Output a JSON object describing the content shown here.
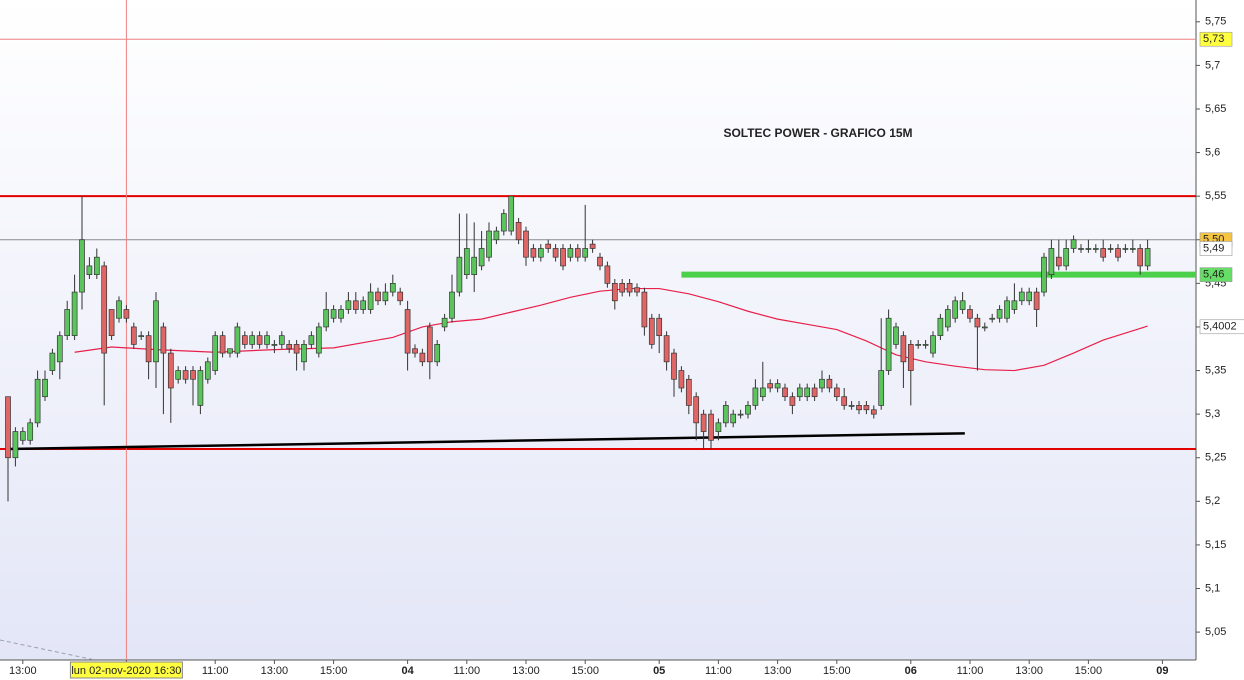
{
  "chart_data": {
    "type": "candlestick",
    "title": "SOLTEC POWER - GRAFICO 15M",
    "categories": [
      null,
      null,
      "13:00",
      null,
      null,
      null,
      null,
      null,
      null,
      null,
      null,
      null,
      null,
      null,
      null,
      null,
      "lun 02-nov-2020 16:30",
      null,
      null,
      null,
      null,
      null,
      null,
      null,
      null,
      null,
      null,
      null,
      "11:00",
      null,
      null,
      null,
      null,
      null,
      null,
      null,
      "13:00",
      null,
      null,
      null,
      null,
      null,
      null,
      null,
      "15:00",
      null,
      null,
      null,
      null,
      null,
      null,
      null,
      null,
      null,
      "04",
      null,
      null,
      null,
      null,
      null,
      null,
      null,
      "11:00",
      null,
      null,
      null,
      null,
      null,
      null,
      null,
      "13:00",
      null,
      null,
      null,
      null,
      null,
      null,
      null,
      "15:00",
      null,
      null,
      null,
      null,
      null,
      null,
      null,
      null,
      null,
      "05",
      null,
      null,
      null,
      null,
      null,
      null,
      null,
      "11:00",
      null,
      null,
      null,
      null,
      null,
      null,
      null,
      "13:00",
      null,
      null,
      null,
      null,
      null,
      null,
      null,
      "15:00",
      null,
      null,
      null,
      null,
      null,
      null,
      null,
      null,
      null,
      "06",
      null,
      null,
      null,
      null,
      null,
      null,
      null,
      "11:00",
      null,
      null,
      null,
      null,
      null,
      null,
      null,
      "13:00",
      null,
      null,
      null,
      null,
      null,
      null,
      null,
      "15:00",
      null,
      null,
      null,
      null,
      null,
      null,
      null,
      null,
      null,
      "09"
    ],
    "ohlc": [
      [
        5.32,
        5.32,
        5.2,
        5.25
      ],
      [
        5.25,
        5.285,
        5.24,
        5.28
      ],
      [
        5.27,
        5.285,
        5.265,
        5.28
      ],
      [
        5.27,
        5.295,
        5.265,
        5.29
      ],
      [
        5.29,
        5.35,
        5.285,
        5.34
      ],
      [
        5.32,
        5.35,
        5.315,
        5.34
      ],
      [
        5.35,
        5.375,
        5.345,
        5.37
      ],
      [
        5.36,
        5.395,
        5.34,
        5.39
      ],
      [
        5.39,
        5.43,
        5.385,
        5.42
      ],
      [
        5.39,
        5.46,
        5.385,
        5.44
      ],
      [
        5.44,
        5.55,
        5.42,
        5.5
      ],
      [
        5.46,
        5.48,
        5.455,
        5.47
      ],
      [
        5.46,
        5.49,
        5.455,
        5.48
      ],
      [
        5.47,
        5.475,
        5.31,
        5.37
      ],
      [
        5.42,
        5.42,
        5.385,
        5.39
      ],
      [
        5.41,
        5.435,
        5.405,
        5.43
      ],
      [
        5.42,
        5.425,
        5.405,
        5.41
      ],
      [
        5.4,
        5.405,
        5.375,
        5.38
      ],
      [
        5.39,
        5.395,
        5.385,
        5.39
      ],
      [
        5.39,
        5.395,
        5.34,
        5.36
      ],
      [
        5.36,
        5.44,
        5.33,
        5.43
      ],
      [
        5.4,
        5.405,
        5.3,
        5.37
      ],
      [
        5.37,
        5.375,
        5.29,
        5.33
      ],
      [
        5.34,
        5.355,
        5.335,
        5.35
      ],
      [
        5.35,
        5.355,
        5.335,
        5.34
      ],
      [
        5.35,
        5.355,
        5.31,
        5.34
      ],
      [
        5.31,
        5.355,
        5.3,
        5.35
      ],
      [
        5.34,
        5.365,
        5.335,
        5.36
      ],
      [
        5.35,
        5.395,
        5.345,
        5.39
      ],
      [
        5.39,
        5.395,
        5.365,
        5.37
      ],
      [
        5.37,
        5.375,
        5.365,
        5.375
      ],
      [
        5.37,
        5.405,
        5.365,
        5.4
      ],
      [
        5.39,
        5.395,
        5.375,
        5.38
      ],
      [
        5.38,
        5.395,
        5.375,
        5.39
      ],
      [
        5.39,
        5.395,
        5.375,
        5.38
      ],
      [
        5.38,
        5.395,
        5.375,
        5.39
      ],
      [
        5.38,
        5.385,
        5.37,
        5.38
      ],
      [
        5.38,
        5.395,
        5.375,
        5.39
      ],
      [
        5.38,
        5.385,
        5.37,
        5.375
      ],
      [
        5.38,
        5.385,
        5.35,
        5.37
      ],
      [
        5.36,
        5.385,
        5.35,
        5.38
      ],
      [
        5.38,
        5.395,
        5.375,
        5.39
      ],
      [
        5.37,
        5.405,
        5.365,
        5.4
      ],
      [
        5.4,
        5.44,
        5.395,
        5.42
      ],
      [
        5.41,
        5.425,
        5.405,
        5.42
      ],
      [
        5.41,
        5.425,
        5.405,
        5.42
      ],
      [
        5.42,
        5.44,
        5.415,
        5.43
      ],
      [
        5.43,
        5.44,
        5.415,
        5.42
      ],
      [
        5.42,
        5.435,
        5.415,
        5.43
      ],
      [
        5.42,
        5.45,
        5.415,
        5.44
      ],
      [
        5.44,
        5.445,
        5.425,
        5.43
      ],
      [
        5.43,
        5.45,
        5.425,
        5.44
      ],
      [
        5.44,
        5.46,
        5.435,
        5.45
      ],
      [
        5.44,
        5.445,
        5.425,
        5.43
      ],
      [
        5.42,
        5.43,
        5.35,
        5.37
      ],
      [
        5.375,
        5.38,
        5.365,
        5.37
      ],
      [
        5.37,
        5.375,
        5.355,
        5.36
      ],
      [
        5.4,
        5.405,
        5.34,
        5.36
      ],
      [
        5.36,
        5.385,
        5.355,
        5.38
      ],
      [
        5.4,
        5.415,
        5.395,
        5.41
      ],
      [
        5.41,
        5.46,
        5.405,
        5.44
      ],
      [
        5.44,
        5.53,
        5.435,
        5.48
      ],
      [
        5.46,
        5.53,
        5.455,
        5.49
      ],
      [
        5.46,
        5.52,
        5.44,
        5.48
      ],
      [
        5.47,
        5.51,
        5.465,
        5.49
      ],
      [
        5.48,
        5.52,
        5.475,
        5.51
      ],
      [
        5.5,
        5.515,
        5.495,
        5.51
      ],
      [
        5.51,
        5.535,
        5.505,
        5.53
      ],
      [
        5.51,
        5.55,
        5.505,
        5.55
      ],
      [
        5.52,
        5.525,
        5.495,
        5.5
      ],
      [
        5.51,
        5.515,
        5.47,
        5.48
      ],
      [
        5.49,
        5.495,
        5.475,
        5.48
      ],
      [
        5.48,
        5.495,
        5.475,
        5.49
      ],
      [
        5.495,
        5.5,
        5.485,
        5.49
      ],
      [
        5.49,
        5.495,
        5.475,
        5.48
      ],
      [
        5.49,
        5.495,
        5.465,
        5.47
      ],
      [
        5.48,
        5.495,
        5.475,
        5.49
      ],
      [
        5.49,
        5.495,
        5.475,
        5.48
      ],
      [
        5.48,
        5.54,
        5.475,
        5.49
      ],
      [
        5.495,
        5.5,
        5.485,
        5.49
      ],
      [
        5.48,
        5.485,
        5.465,
        5.47
      ],
      [
        5.47,
        5.475,
        5.445,
        5.45
      ],
      [
        5.45,
        5.455,
        5.42,
        5.43
      ],
      [
        5.45,
        5.455,
        5.435,
        5.44
      ],
      [
        5.45,
        5.455,
        5.435,
        5.44
      ],
      [
        5.445,
        5.45,
        5.435,
        5.44
      ],
      [
        5.44,
        5.445,
        5.39,
        5.4
      ],
      [
        5.41,
        5.415,
        5.375,
        5.38
      ],
      [
        5.41,
        5.415,
        5.37,
        5.39
      ],
      [
        5.39,
        5.395,
        5.35,
        5.36
      ],
      [
        5.37,
        5.375,
        5.32,
        5.34
      ],
      [
        5.35,
        5.355,
        5.325,
        5.33
      ],
      [
        5.34,
        5.345,
        5.3,
        5.31
      ],
      [
        5.32,
        5.325,
        5.27,
        5.29
      ],
      [
        5.3,
        5.305,
        5.26,
        5.28
      ],
      [
        5.3,
        5.305,
        5.26,
        5.27
      ],
      [
        5.28,
        5.295,
        5.27,
        5.29
      ],
      [
        5.29,
        5.315,
        5.285,
        5.31
      ],
      [
        5.29,
        5.305,
        5.285,
        5.3
      ],
      [
        5.3,
        5.305,
        5.295,
        5.3
      ],
      [
        5.3,
        5.315,
        5.295,
        5.31
      ],
      [
        5.31,
        5.34,
        5.305,
        5.33
      ],
      [
        5.32,
        5.36,
        5.315,
        5.33
      ],
      [
        5.335,
        5.34,
        5.325,
        5.33
      ],
      [
        5.33,
        5.34,
        5.325,
        5.335
      ],
      [
        5.33,
        5.335,
        5.315,
        5.32
      ],
      [
        5.32,
        5.325,
        5.3,
        5.31
      ],
      [
        5.32,
        5.335,
        5.315,
        5.33
      ],
      [
        5.32,
        5.335,
        5.315,
        5.33
      ],
      [
        5.33,
        5.335,
        5.315,
        5.32
      ],
      [
        5.33,
        5.35,
        5.325,
        5.34
      ],
      [
        5.34,
        5.345,
        5.325,
        5.33
      ],
      [
        5.33,
        5.335,
        5.315,
        5.32
      ],
      [
        5.32,
        5.33,
        5.305,
        5.31
      ],
      [
        5.31,
        5.315,
        5.305,
        5.31
      ],
      [
        5.31,
        5.315,
        5.3,
        5.305
      ],
      [
        5.31,
        5.315,
        5.3,
        5.305
      ],
      [
        5.305,
        5.31,
        5.295,
        5.3
      ],
      [
        5.31,
        5.41,
        5.305,
        5.35
      ],
      [
        5.35,
        5.42,
        5.345,
        5.41
      ],
      [
        5.38,
        5.405,
        5.375,
        5.4
      ],
      [
        5.39,
        5.395,
        5.33,
        5.36
      ],
      [
        5.38,
        5.385,
        5.31,
        5.35
      ],
      [
        5.38,
        5.385,
        5.375,
        5.38
      ],
      [
        5.38,
        5.385,
        5.375,
        5.38
      ],
      [
        5.37,
        5.395,
        5.365,
        5.39
      ],
      [
        5.39,
        5.415,
        5.385,
        5.41
      ],
      [
        5.4,
        5.425,
        5.395,
        5.42
      ],
      [
        5.41,
        5.435,
        5.405,
        5.43
      ],
      [
        5.42,
        5.44,
        5.415,
        5.43
      ],
      [
        5.42,
        5.425,
        5.405,
        5.41
      ],
      [
        5.41,
        5.415,
        5.35,
        5.4
      ],
      [
        5.4,
        5.405,
        5.395,
        5.4
      ],
      [
        5.41,
        5.415,
        5.405,
        5.41
      ],
      [
        5.41,
        5.425,
        5.405,
        5.42
      ],
      [
        5.41,
        5.435,
        5.405,
        5.43
      ],
      [
        5.42,
        5.45,
        5.415,
        5.43
      ],
      [
        5.43,
        5.445,
        5.425,
        5.44
      ],
      [
        5.43,
        5.445,
        5.425,
        5.44
      ],
      [
        5.44,
        5.445,
        5.4,
        5.42
      ],
      [
        5.44,
        5.485,
        5.435,
        5.48
      ],
      [
        5.46,
        5.5,
        5.455,
        5.49
      ],
      [
        5.48,
        5.5,
        5.465,
        5.47
      ],
      [
        5.47,
        5.5,
        5.465,
        5.49
      ],
      [
        5.49,
        5.505,
        5.485,
        5.5
      ],
      [
        5.49,
        5.495,
        5.485,
        5.49
      ],
      [
        5.49,
        5.5,
        5.485,
        5.49
      ],
      [
        5.49,
        5.495,
        5.485,
        5.49
      ],
      [
        5.49,
        5.5,
        5.475,
        5.48
      ],
      [
        5.49,
        5.495,
        5.485,
        5.49
      ],
      [
        5.49,
        5.495,
        5.475,
        5.48
      ],
      [
        5.49,
        5.495,
        5.485,
        5.49
      ],
      [
        5.49,
        5.5,
        5.485,
        5.49
      ],
      [
        5.49,
        5.495,
        5.46,
        5.47
      ],
      [
        5.47,
        5.5,
        5.465,
        5.49
      ],
      null,
      null
    ],
    "up_color": "#5cc45c",
    "down_color": "#e06666",
    "ma": {
      "color": "#e8204a",
      "x": [
        9,
        14,
        20,
        28,
        36,
        44,
        52,
        56,
        60,
        64,
        68,
        72,
        76,
        80,
        84,
        88,
        92,
        96,
        100,
        104,
        108,
        112,
        116,
        120,
        124,
        128,
        132,
        136,
        140,
        144,
        148,
        154
      ],
      "values": [
        5.371,
        5.377,
        5.374,
        5.371,
        5.374,
        5.376,
        5.388,
        5.4,
        5.406,
        5.409,
        5.417,
        5.425,
        5.434,
        5.441,
        5.444,
        5.444,
        5.438,
        5.429,
        5.418,
        5.409,
        5.403,
        5.397,
        5.384,
        5.368,
        5.36,
        5.355,
        5.351,
        5.35,
        5.356,
        5.37,
        5.385,
        5.401
      ]
    },
    "levels": [
      {
        "value": 5.55,
        "color": "#e00000"
      },
      {
        "value": 5.26,
        "color": "#e00000"
      },
      {
        "value": 5.5,
        "color": "#8a8a8a"
      }
    ],
    "support": {
      "from": 91,
      "value": 5.46,
      "color": "#4cd04c"
    },
    "trendline": {
      "x": [
        0,
        129.3
      ],
      "values": [
        5.26,
        5.278
      ],
      "color": "#000000"
    },
    "crosshair": {
      "index": 16,
      "value": 5.73,
      "color": "#f08080"
    },
    "ylim": [
      5.018,
      5.775
    ],
    "yticks": [
      {
        "value": 5.75,
        "label": "5,75"
      },
      {
        "value": 5.7,
        "label": "5,7"
      },
      {
        "value": 5.65,
        "label": "5,65"
      },
      {
        "value": 5.6,
        "label": "5,6"
      },
      {
        "value": 5.55,
        "label": "5,55"
      },
      {
        "value": 5.5,
        "label": "5,5"
      },
      {
        "value": 5.45,
        "label": "5,45"
      },
      {
        "value": 5.4,
        "label": "5,4"
      },
      {
        "value": 5.35,
        "label": "5,35"
      },
      {
        "value": 5.3,
        "label": "5,3"
      },
      {
        "value": 5.25,
        "label": "5,25"
      },
      {
        "value": 5.2,
        "label": "5,2"
      },
      {
        "value": 5.15,
        "label": "5,15"
      },
      {
        "value": 5.1,
        "label": "5,1"
      },
      {
        "value": 5.05,
        "label": "5,05"
      }
    ],
    "price_labels": [
      {
        "value": 5.73,
        "label": "5,73",
        "bg": "#ffff40",
        "color": "#000000"
      },
      {
        "value": 5.5,
        "label": "5,50",
        "bg": "#f5c542",
        "color": "#000000"
      },
      {
        "value": 5.49,
        "label": "5,49",
        "bg": "#ffffff",
        "color": "#000000"
      },
      {
        "value": 5.46,
        "label": "5,46",
        "bg": "#66dd66",
        "color": "#ffffff"
      },
      {
        "value": 5.4002,
        "label": "5,4002",
        "bg": "#ffffff",
        "color": "#e00000"
      }
    ]
  }
}
